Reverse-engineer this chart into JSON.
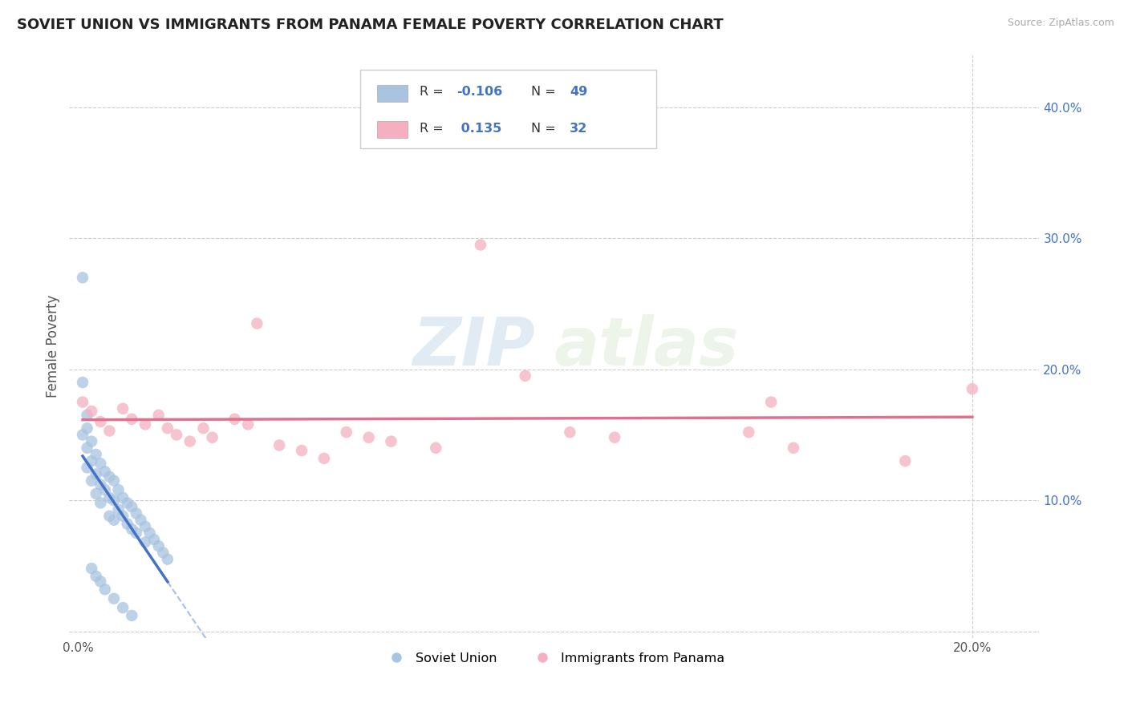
{
  "title": "SOVIET UNION VS IMMIGRANTS FROM PANAMA FEMALE POVERTY CORRELATION CHART",
  "source_text": "Source: ZipAtlas.com",
  "ylabel": "Female Poverty",
  "watermark": "ZIPatlas",
  "xlim": [
    -0.002,
    0.215
  ],
  "ylim": [
    -0.005,
    0.44
  ],
  "xticks": [
    0.0,
    0.05,
    0.1,
    0.15,
    0.2
  ],
  "xtick_labels": [
    "0.0%",
    "",
    "",
    "",
    "20.0%"
  ],
  "yticks_right": [
    0.0,
    0.1,
    0.2,
    0.3,
    0.4
  ],
  "ytick_labels_right": [
    "",
    "10.0%",
    "20.0%",
    "30.0%",
    "40.0%"
  ],
  "legend_sublabel1": "Soviet Union",
  "legend_sublabel2": "Immigrants from Panama",
  "blue_color": "#a8c4e0",
  "pink_color": "#f4b0c0",
  "blue_line_color": "#4472c4",
  "pink_line_color": "#e07090",
  "soviet_x": [
    0.001,
    0.001,
    0.002,
    0.002,
    0.002,
    0.003,
    0.003,
    0.003,
    0.004,
    0.004,
    0.004,
    0.005,
    0.005,
    0.005,
    0.006,
    0.006,
    0.007,
    0.007,
    0.007,
    0.008,
    0.008,
    0.008,
    0.009,
    0.009,
    0.01,
    0.01,
    0.011,
    0.011,
    0.012,
    0.012,
    0.013,
    0.013,
    0.014,
    0.015,
    0.015,
    0.016,
    0.017,
    0.018,
    0.019,
    0.02,
    0.001,
    0.002,
    0.003,
    0.004,
    0.005,
    0.006,
    0.008,
    0.01,
    0.012
  ],
  "soviet_y": [
    0.19,
    0.15,
    0.165,
    0.14,
    0.125,
    0.145,
    0.13,
    0.115,
    0.135,
    0.12,
    0.105,
    0.128,
    0.112,
    0.098,
    0.122,
    0.108,
    0.118,
    0.102,
    0.088,
    0.115,
    0.1,
    0.085,
    0.108,
    0.093,
    0.102,
    0.088,
    0.098,
    0.082,
    0.095,
    0.078,
    0.09,
    0.075,
    0.085,
    0.08,
    0.068,
    0.075,
    0.07,
    0.065,
    0.06,
    0.055,
    0.27,
    0.155,
    0.048,
    0.042,
    0.038,
    0.032,
    0.025,
    0.018,
    0.012
  ],
  "panama_x": [
    0.001,
    0.003,
    0.005,
    0.007,
    0.01,
    0.012,
    0.015,
    0.018,
    0.02,
    0.022,
    0.025,
    0.028,
    0.03,
    0.035,
    0.038,
    0.04,
    0.045,
    0.05,
    0.055,
    0.06,
    0.065,
    0.07,
    0.08,
    0.09,
    0.1,
    0.11,
    0.12,
    0.15,
    0.155,
    0.16,
    0.185,
    0.2
  ],
  "panama_y": [
    0.175,
    0.168,
    0.16,
    0.153,
    0.17,
    0.162,
    0.158,
    0.165,
    0.155,
    0.15,
    0.145,
    0.155,
    0.148,
    0.162,
    0.158,
    0.235,
    0.142,
    0.138,
    0.132,
    0.152,
    0.148,
    0.145,
    0.14,
    0.295,
    0.195,
    0.152,
    0.148,
    0.152,
    0.175,
    0.14,
    0.13,
    0.185
  ]
}
